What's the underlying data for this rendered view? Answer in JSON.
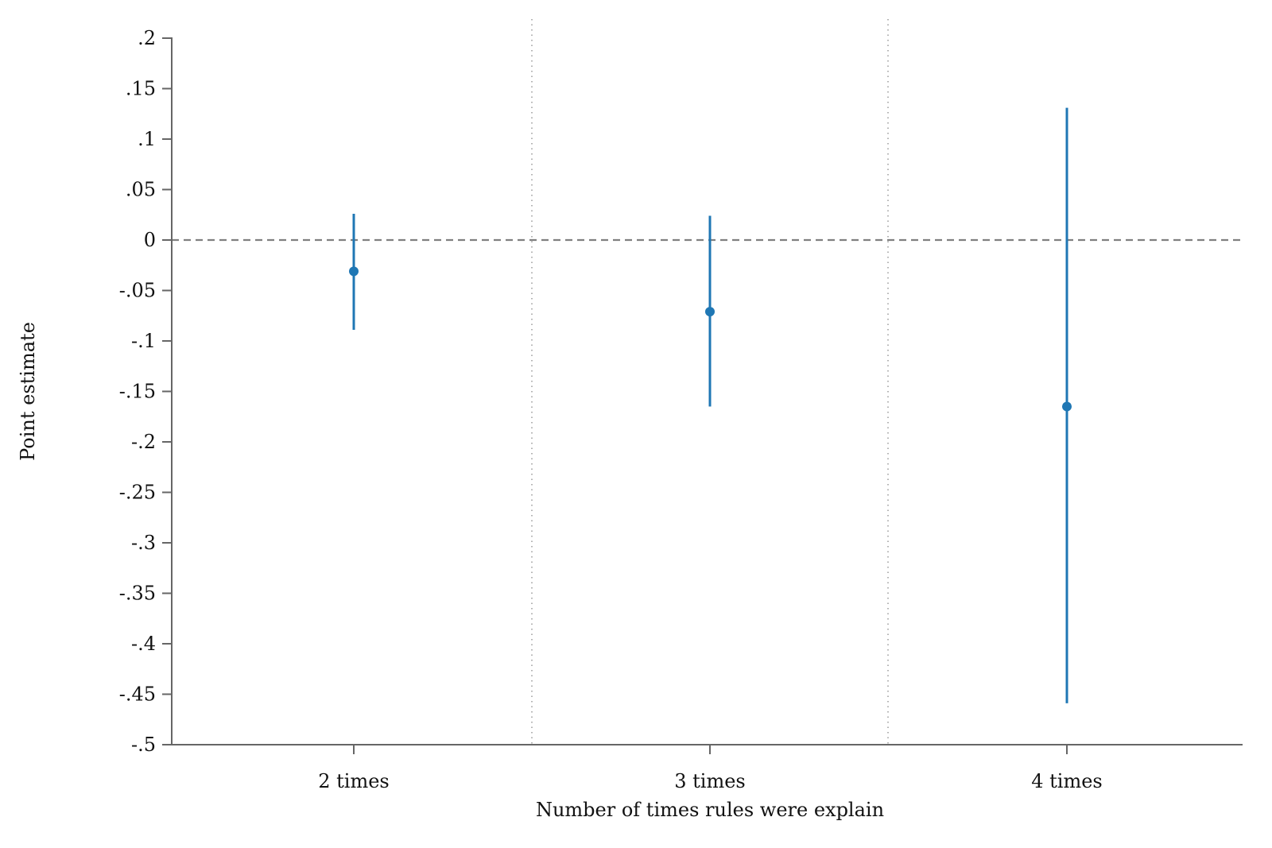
{
  "chart_data": {
    "type": "scatter",
    "title": "",
    "xlabel": "Number of times rules were explain",
    "ylabel": "Point estimate",
    "categories": [
      "2 times",
      "3 times",
      "4 times"
    ],
    "point_estimates": [
      -0.031,
      -0.071,
      -0.165
    ],
    "ci_lower": [
      -0.089,
      -0.165,
      -0.459
    ],
    "ci_upper": [
      0.026,
      0.024,
      0.131
    ],
    "ylim": [
      -0.5,
      0.2
    ],
    "yticks": [
      0.2,
      0.15,
      0.1,
      0.05,
      0,
      -0.05,
      -0.1,
      -0.15,
      -0.2,
      -0.25,
      -0.3,
      -0.35,
      -0.4,
      -0.45,
      -0.5
    ],
    "ytick_labels": [
      ".2",
      ".15",
      ".1",
      ".05",
      "0",
      "-.05",
      "-.1",
      "-.15",
      "-.2",
      "-.25",
      "-.3",
      "-.35",
      "-.4",
      "-.45",
      "-.5"
    ],
    "reference_line_y": 0,
    "grid": false,
    "category_separators": true,
    "colors": {
      "series": "#1f77b4",
      "axis": "#666666",
      "reference_line": "#808080",
      "separator": "#999999"
    }
  }
}
